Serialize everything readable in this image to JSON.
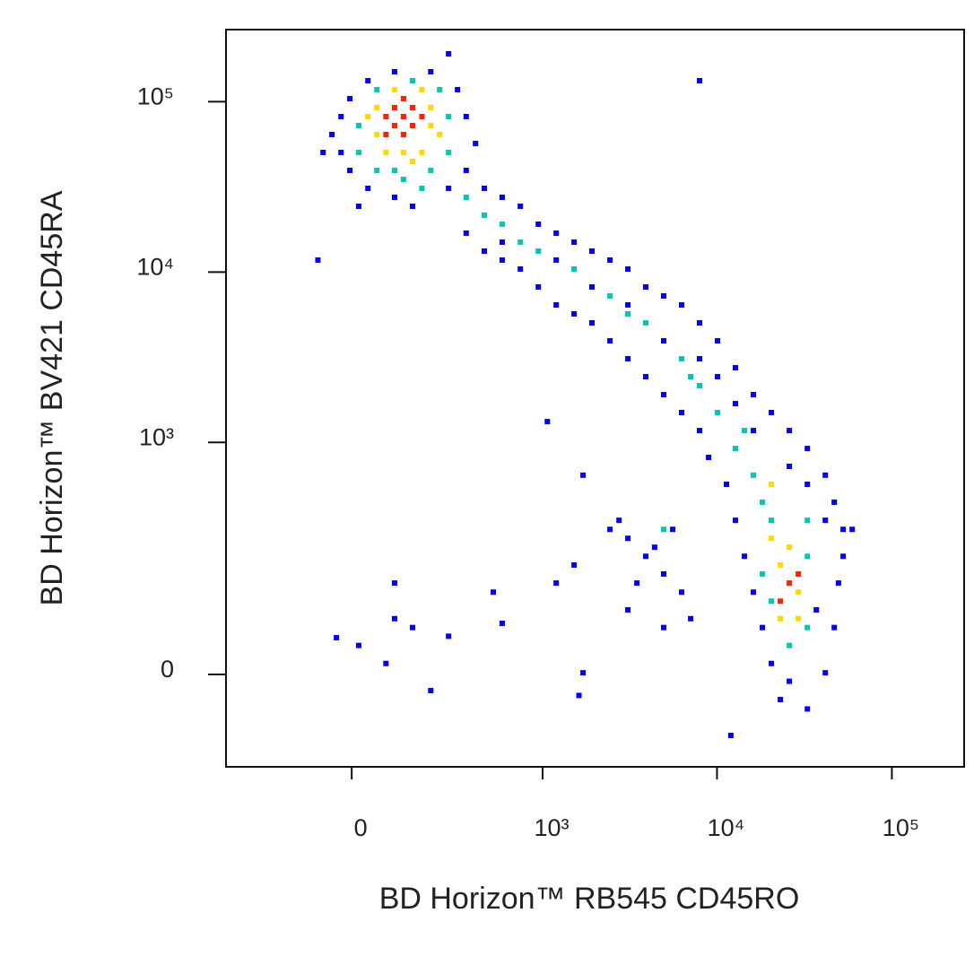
{
  "chart_data": {
    "type": "scatter",
    "xlabel": "BD Horizon™ RB545 CD45RO",
    "ylabel": "BD Horizon™ BV421 CD45RA",
    "xscale": "biexponential",
    "yscale": "biexponential",
    "xlim": [
      -411,
      259000
    ],
    "ylim": [
      -139,
      265000
    ],
    "xticks": [
      0,
      {
        "value": 1000,
        "label": "10³"
      },
      {
        "value": 10000,
        "label": "10⁴"
      },
      {
        "value": 100000,
        "label": "10⁵"
      }
    ],
    "yticks": [
      0,
      {
        "value": 1000,
        "label": "10³"
      },
      {
        "value": 10000,
        "label": "10⁴"
      },
      {
        "value": 100000,
        "label": "10⁵"
      }
    ],
    "series": [
      {
        "color": "#0000ff",
        "x": [
          -43,
          -63,
          -23,
          -4,
          35,
          97,
          202,
          308,
          350,
          400,
          350,
          269,
          97,
          35,
          -4,
          -23,
          15,
          145,
          269,
          7950,
          -75,
          453,
          580,
          742,
          944,
          1198,
          1519,
          1924,
          2440,
          3090,
          3912,
          4955,
          6276,
          7950,
          10070,
          12750,
          16150,
          20460,
          25920,
          32870,
          41630,
          46830,
          52650,
          350,
          453,
          580,
          742,
          944,
          1198,
          1519,
          1924,
          2440,
          3090,
          3912,
          4955,
          6276,
          7950,
          8950,
          11330,
          12750,
          14350,
          16150,
          18180,
          20460,
          23030,
          32870,
          41630,
          46830,
          49500,
          52650,
          59300,
          580,
          1198,
          1924,
          3090,
          4955,
          7950,
          10070,
          12750,
          16150,
          25920,
          32870,
          41630,
          36990,
          25920,
          3090,
          3912,
          4955,
          6276,
          3480,
          4400,
          5580,
          2750,
          3090,
          7070,
          4955,
          2440,
          -33,
          15,
          76,
          97,
          145,
          202,
          269,
          513,
          580,
          1198,
          1519,
          1710,
          1065,
          1710,
          12000,
          97,
          1620
        ],
        "values": [
          64200,
          50380,
          81800,
          104200,
          132800,
          149900,
          149900,
          117700,
          81800,
          56870,
          39530,
          31020,
          27480,
          31020,
          39530,
          50380,
          24350,
          24350,
          191100,
          132800,
          11770,
          31020,
          27480,
          24350,
          19110,
          16930,
          14990,
          13280,
          11770,
          10420,
          8180,
          7245,
          6415,
          5035,
          3950,
          2745,
          1908,
          1497,
          1173,
          920,
          640,
          442,
          303,
          16930,
          13280,
          11770,
          10420,
          8180,
          6415,
          5685,
          5035,
          3950,
          3100,
          2432,
          1908,
          1497,
          1173,
          815,
          565,
          344,
          206,
          118,
          59,
          13,
          -30,
          -42,
          2,
          59,
          137,
          206,
          303,
          14990,
          11770,
          8180,
          6415,
          3950,
          3100,
          2432,
          1690,
          1173,
          722,
          565,
          344,
          86,
          -8,
          267,
          206,
          158,
          118,
          137,
          235,
          303,
          344,
          86,
          72,
          59,
          303,
          45,
          35,
          13,
          72,
          59,
          -19,
          47,
          118,
          65,
          137,
          181,
          2,
          1325,
          640,
          -80,
          137,
          -25
        ]
      },
      {
        "color": "#00c8b4",
        "x": [
          15,
          15,
          55,
          120,
          202,
          269,
          269,
          234,
          145,
          55,
          97,
          173,
          350,
          453,
          580,
          944,
          1519,
          2440,
          3912,
          6276,
          7950,
          10070,
          12750,
          16150,
          18180,
          20460,
          32870,
          18180,
          32870,
          25920,
          20460,
          32870,
          14350,
          7070,
          3090,
          742,
          4955
        ],
        "values": [
          72470,
          50380,
          39530,
          35020,
          39530,
          50380,
          81800,
          117700,
          132800,
          117700,
          39530,
          31020,
          27480,
          21570,
          19110,
          13280,
          10420,
          7245,
          5035,
          3100,
          2155,
          1497,
          920,
          640,
          442,
          344,
          206,
          158,
          59,
          35,
          101,
          344,
          1173,
          2432,
          5685,
          14990,
          303
        ]
      },
      {
        "color": "#ffd800",
        "x": [
          35,
          55,
          202,
          234,
          173,
          76,
          120,
          97,
          173,
          55,
          202,
          145,
          23030,
          29180,
          25920,
          23030,
          29180,
          20460,
          20460
        ],
        "values": [
          81800,
          64200,
          92340,
          64200,
          50380,
          50380,
          50380,
          117700,
          117700,
          92340,
          72470,
          44620,
          181,
          118,
          235,
          72,
          72,
          267,
          565
        ]
      },
      {
        "color": "#ff2000",
        "x": [
          76,
          120,
          173,
          97,
          145,
          76,
          120,
          145,
          97,
          120,
          25920,
          23030,
          29180
        ],
        "values": [
          81800,
          81800,
          81800,
          72470,
          72470,
          64200,
          64200,
          92340,
          92340,
          104200,
          137,
          101,
          158
        ]
      }
    ]
  }
}
